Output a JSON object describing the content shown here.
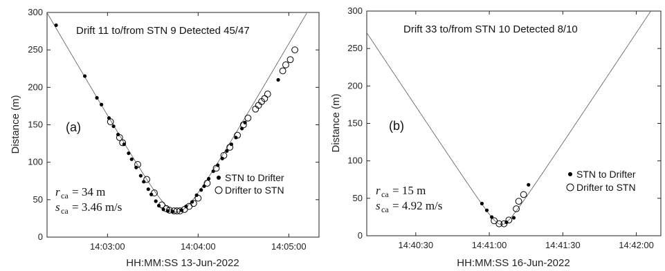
{
  "chart_data": [
    {
      "type": "scatter",
      "panel_label": "(a)",
      "title": "Drift 11 to/from STN 9 Detected 45/47",
      "xlabel": "HH:MM:SS 13-Jun-2022",
      "ylabel": "Distance (m)",
      "xlim": [
        "14:02:20",
        "14:05:20"
      ],
      "ylim": [
        0,
        300
      ],
      "x_ticks": [
        "14:03:00",
        "14:04:00",
        "14:05:00"
      ],
      "y_ticks": [
        0,
        50,
        100,
        150,
        200,
        250,
        300
      ],
      "params": {
        "r_label": "r",
        "r_sub": "ca",
        "r_value": "= 34 m",
        "s_label": "s",
        "s_sub": "ca",
        "s_value": "= 3.46 m/s"
      },
      "legend": {
        "position": "lower-right",
        "entries": [
          "STN to Drifter",
          "Drifter to STN"
        ]
      },
      "model_curve": {
        "t_closest": "14:03:46",
        "r_ca_m": 34,
        "s_ca_mps": 3.46
      },
      "series": [
        {
          "name": "STN to Drifter",
          "marker": "filled",
          "x": [
            "14:02:26",
            "14:02:45",
            "14:02:53",
            "14:02:56",
            "14:03:01",
            "14:03:04",
            "14:03:07",
            "14:03:11",
            "14:03:14",
            "14:03:16",
            "14:03:19",
            "14:03:22",
            "14:03:24",
            "14:03:27",
            "14:03:29",
            "14:03:32",
            "14:03:34",
            "14:03:37",
            "14:03:40",
            "14:03:43",
            "14:03:49",
            "14:03:52",
            "14:03:56",
            "14:03:59",
            "14:04:02",
            "14:04:04",
            "14:04:07",
            "14:04:10",
            "14:04:13",
            "14:04:16",
            "14:04:19",
            "14:04:22",
            "14:04:25",
            "14:04:29",
            "14:04:31",
            "14:04:53"
          ],
          "y": [
            283,
            215,
            186,
            177,
            159,
            148,
            137,
            124,
            112,
            104,
            93,
            82,
            74,
            64,
            57,
            48,
            42,
            37,
            35,
            34,
            36,
            41,
            47,
            56,
            63,
            68,
            78,
            88,
            96,
            105,
            115,
            124,
            133,
            145,
            153,
            210
          ]
        },
        {
          "name": "Drifter to STN",
          "marker": "open",
          "x": [
            "14:03:02",
            "14:03:08",
            "14:03:10",
            "14:03:20",
            "14:03:26",
            "14:03:31",
            "14:03:36",
            "14:03:39",
            "14:03:41",
            "14:03:44",
            "14:03:46",
            "14:03:48",
            "14:03:51",
            "14:03:54",
            "14:03:57",
            "14:04:00",
            "14:04:06",
            "14:04:12",
            "14:04:17",
            "14:04:21",
            "14:04:26",
            "14:04:30",
            "14:04:33",
            "14:04:38",
            "14:04:40",
            "14:04:42",
            "14:04:44",
            "14:04:46",
            "14:04:56",
            "14:04:58",
            "14:05:01",
            "14:05:04"
          ],
          "y": [
            154,
            133,
            126,
            97,
            77,
            59,
            43,
            38,
            36,
            35,
            35,
            35,
            37,
            41,
            45,
            52,
            72,
            92,
            109,
            120,
            136,
            150,
            159,
            171,
            176,
            181,
            185,
            191,
            222,
            230,
            237,
            250
          ]
        }
      ]
    },
    {
      "type": "scatter",
      "panel_label": "(b)",
      "title": "Drift 33 to/from STN 10 Detected 8/10",
      "xlabel": "HH:MM:SS 16-Jun-2022",
      "ylabel": "Distance (m)",
      "xlim": [
        "14:40:10",
        "14:42:10"
      ],
      "ylim": [
        0,
        300
      ],
      "x_ticks": [
        "14:40:30",
        "14:41:00",
        "14:41:30",
        "14:42:00"
      ],
      "y_ticks": [
        0,
        50,
        100,
        150,
        200,
        250,
        300
      ],
      "params": {
        "r_label": "r",
        "r_sub": "ca",
        "r_value": "= 15 m",
        "s_label": "s",
        "s_sub": "ca",
        "s_value": "= 4.92 m/s"
      },
      "legend": {
        "position": "lower-right",
        "entries": [
          "STN to Drifter",
          "Drifter to STN"
        ]
      },
      "model_curve": {
        "t_closest": "14:41:05",
        "r_ca_m": 15,
        "s_ca_mps": 4.92
      },
      "series": [
        {
          "name": "STN to Drifter",
          "marker": "filled",
          "x": [
            "14:40:57",
            "14:40:59",
            "14:41:01",
            "14:41:07",
            "14:41:10",
            "14:41:16"
          ],
          "y": [
            43,
            34,
            25,
            18,
            24,
            68
          ]
        },
        {
          "name": "Drifter to STN",
          "marker": "open",
          "x": [
            "14:41:02",
            "14:41:04",
            "14:41:06",
            "14:41:08",
            "14:41:11",
            "14:41:12",
            "14:41:14"
          ],
          "y": [
            20,
            16,
            16,
            21,
            36,
            46,
            55
          ]
        }
      ]
    }
  ]
}
